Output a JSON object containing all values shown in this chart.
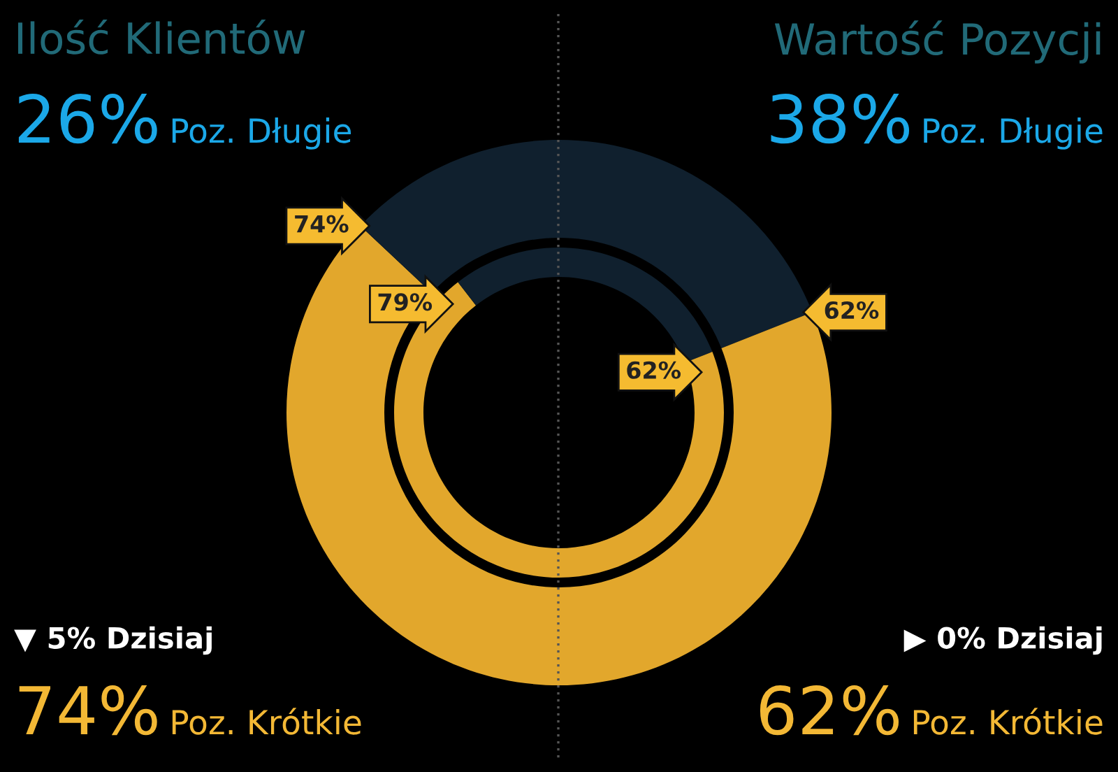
{
  "chart_data": {
    "type": "donut",
    "title": "Ilość Klientów",
    "categories": [
      null,
      null,
      null,
      null
    ],
    "colors": [
      "#e2a72c",
      "#10202e",
      "#10202e",
      "#e2a72c"
    ],
    "series": [
      {
        "values": [
          74,
          26,
          38,
          62
        ],
        "value_labels": [
          "74%",
          null,
          null,
          "62%"
        ]
      },
      {
        "values": [
          79,
          21,
          38,
          62
        ],
        "value_labels": [
          "79%",
          null,
          null,
          "62%"
        ]
      }
    ],
    "annotations": [
      "Wartość Pozycji",
      "26%",
      "Poz. Długie",
      "38%",
      "Poz. Długie",
      "▼ 5% Dzisiaj",
      "▶ 0% Dzisiaj",
      "74%",
      "Poz. Krótkie",
      "62%",
      "Poz. Krótkie"
    ]
  }
}
